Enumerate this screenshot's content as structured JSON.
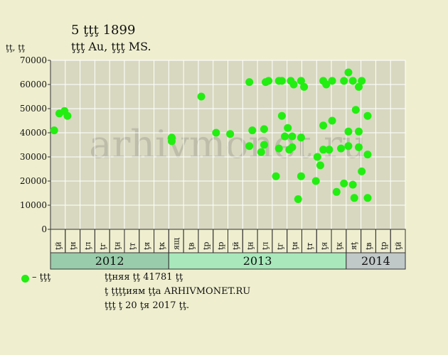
{
  "header": {
    "title": "5 ţţţ 1899",
    "subtitle": "ţţţ  Au, ţţţ  MS.",
    "yunit": "ţţ, ţţ"
  },
  "footer": {
    "legend_label": "– ţţţ",
    "line1": "ţţняя ţţ 41781 ţţ",
    "line2": "ţ ţţţţиям ţţа ARHIVMONET.RU",
    "line3": "ţţţ ţ 20 ţя 2017 ţţ."
  },
  "watermark": "arhivmonet.ru",
  "colors": {
    "background": "#efefd0",
    "plot_bg": "#d8d8c0",
    "grid": "#ffffff",
    "point": "#22ee11",
    "year_2012": "#99ccaa",
    "year_2013": "#a8e8bb",
    "year_2014": "#c0c8c8"
  },
  "chart_data": {
    "type": "scatter",
    "ylim": [
      0,
      70000
    ],
    "yticks": [
      0,
      10000,
      20000,
      30000,
      40000,
      50000,
      60000,
      70000
    ],
    "ytick_labels": [
      "0",
      "10000",
      "20000",
      "30000",
      "40000",
      "50000",
      "60000",
      "70000"
    ],
    "xlim": [
      0,
      24
    ],
    "months": [
      "ţй",
      "ţн",
      "ţл",
      "ţг",
      "ţн",
      "ţт",
      "ţя",
      "ţк",
      "ящ",
      "ţв",
      "ţр",
      "ţр",
      "ţй",
      "ţн",
      "ţл",
      "ţг",
      "ţн",
      "ţт",
      "ţя",
      "ţк",
      "яţ",
      "ţв",
      "ţр",
      "ţй"
    ],
    "years": [
      {
        "label": "2012",
        "start": 0,
        "end": 8
      },
      {
        "label": "2013",
        "start": 8,
        "end": 20
      },
      {
        "label": "2014",
        "start": 20,
        "end": 24
      }
    ],
    "series": [
      {
        "name": "ţţţ",
        "points": [
          {
            "x": 0.25,
            "y": 41000
          },
          {
            "x": 0.6,
            "y": 48000
          },
          {
            "x": 0.95,
            "y": 49000
          },
          {
            "x": 1.15,
            "y": 47000
          },
          {
            "x": 8.2,
            "y": 38000
          },
          {
            "x": 8.2,
            "y": 36500
          },
          {
            "x": 10.2,
            "y": 55000
          },
          {
            "x": 11.2,
            "y": 40000
          },
          {
            "x": 12.15,
            "y": 39500
          },
          {
            "x": 13.45,
            "y": 61000
          },
          {
            "x": 13.45,
            "y": 34500
          },
          {
            "x": 13.65,
            "y": 41000
          },
          {
            "x": 14.25,
            "y": 32000
          },
          {
            "x": 14.45,
            "y": 35000
          },
          {
            "x": 14.45,
            "y": 41500
          },
          {
            "x": 14.55,
            "y": 61000
          },
          {
            "x": 14.75,
            "y": 61500
          },
          {
            "x": 15.25,
            "y": 22000
          },
          {
            "x": 15.45,
            "y": 33500
          },
          {
            "x": 15.45,
            "y": 61500
          },
          {
            "x": 15.65,
            "y": 61500
          },
          {
            "x": 15.65,
            "y": 47000
          },
          {
            "x": 15.85,
            "y": 38500
          },
          {
            "x": 16.05,
            "y": 42000
          },
          {
            "x": 16.15,
            "y": 33000
          },
          {
            "x": 16.25,
            "y": 61500
          },
          {
            "x": 16.35,
            "y": 34000
          },
          {
            "x": 16.35,
            "y": 38500
          },
          {
            "x": 16.45,
            "y": 60000
          },
          {
            "x": 16.75,
            "y": 12500
          },
          {
            "x": 16.95,
            "y": 61500
          },
          {
            "x": 16.95,
            "y": 22000
          },
          {
            "x": 16.95,
            "y": 38000
          },
          {
            "x": 17.15,
            "y": 59000
          },
          {
            "x": 17.95,
            "y": 20000
          },
          {
            "x": 18.05,
            "y": 30000
          },
          {
            "x": 18.25,
            "y": 26500
          },
          {
            "x": 18.45,
            "y": 43000
          },
          {
            "x": 18.45,
            "y": 33000
          },
          {
            "x": 18.45,
            "y": 61500
          },
          {
            "x": 18.65,
            "y": 60000
          },
          {
            "x": 18.85,
            "y": 33000
          },
          {
            "x": 19.05,
            "y": 45000
          },
          {
            "x": 19.05,
            "y": 61500
          },
          {
            "x": 19.35,
            "y": 15500
          },
          {
            "x": 19.65,
            "y": 33500
          },
          {
            "x": 19.85,
            "y": 19000
          },
          {
            "x": 19.85,
            "y": 61500
          },
          {
            "x": 20.15,
            "y": 65000
          },
          {
            "x": 20.15,
            "y": 40500
          },
          {
            "x": 20.15,
            "y": 34500
          },
          {
            "x": 20.45,
            "y": 61500
          },
          {
            "x": 20.45,
            "y": 18500
          },
          {
            "x": 20.55,
            "y": 13000
          },
          {
            "x": 20.65,
            "y": 49500
          },
          {
            "x": 20.85,
            "y": 59000
          },
          {
            "x": 20.85,
            "y": 40500
          },
          {
            "x": 20.85,
            "y": 34000
          },
          {
            "x": 21.05,
            "y": 61500
          },
          {
            "x": 21.05,
            "y": 24000
          },
          {
            "x": 21.45,
            "y": 47000
          },
          {
            "x": 21.45,
            "y": 31000
          },
          {
            "x": 21.45,
            "y": 13000
          }
        ]
      }
    ]
  }
}
